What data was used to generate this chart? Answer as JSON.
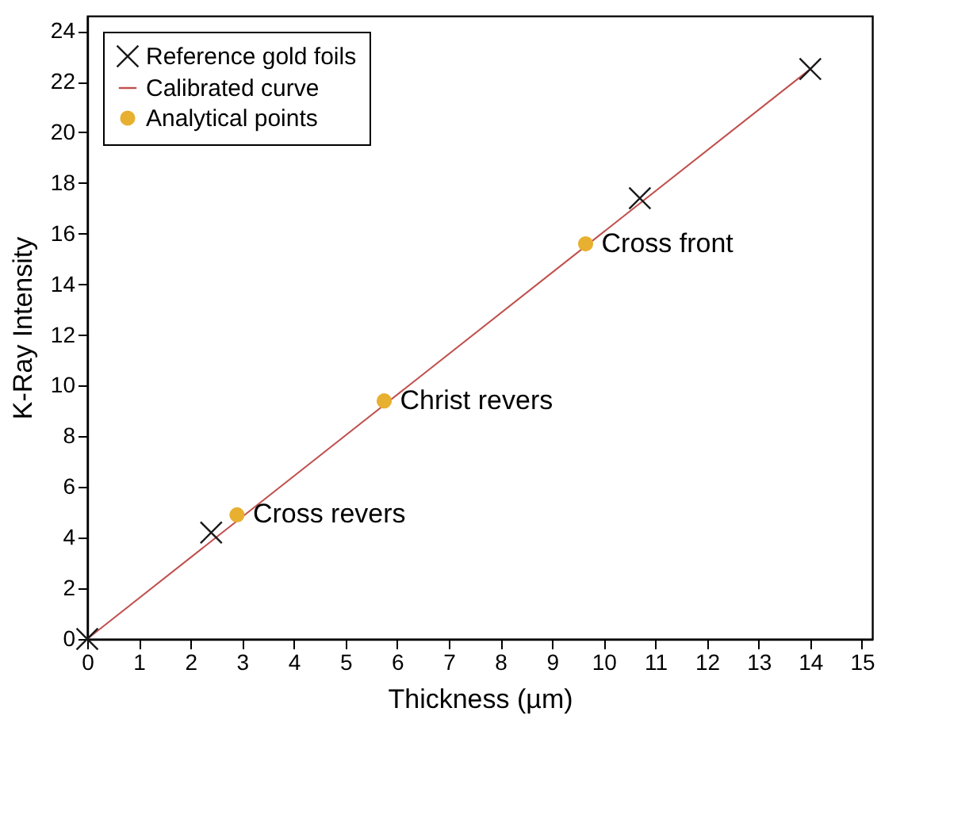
{
  "chart_data": {
    "type": "scatter",
    "xlabel": "Thickness (µm)",
    "ylabel": "K-Ray Intensity",
    "xlim": [
      0,
      15.2
    ],
    "xticks": [
      0,
      1,
      2,
      3,
      4,
      5,
      6,
      7,
      8,
      9,
      10,
      11,
      12,
      13,
      14,
      15
    ],
    "ylim": [
      0,
      24.6
    ],
    "yticks": [
      0,
      2,
      4,
      6,
      8,
      10,
      12,
      14,
      16,
      18,
      20,
      22,
      24
    ],
    "grid": false,
    "legend": "top left",
    "series": [
      {
        "name": "Reference gold foils",
        "marker": "cross",
        "color": "#1a1a1a",
        "x": [
          0,
          2.4,
          10.7,
          14
        ],
        "values": [
          0,
          4.2,
          17.4,
          22.5
        ]
      },
      {
        "name": "Calibrated curve",
        "type": "line",
        "color": "#c0504d",
        "x": [
          0,
          14
        ],
        "values": [
          0,
          22.5
        ]
      },
      {
        "name": "Analytical points",
        "marker": "circle",
        "color": "#e8b030",
        "x": [
          2.9,
          5.75,
          9.65
        ],
        "values": [
          4.9,
          9.4,
          15.6
        ]
      }
    ],
    "annotations": [
      {
        "text": "Cross revers",
        "x": 2.9,
        "y": 4.9
      },
      {
        "text": "Christ revers",
        "x": 5.75,
        "y": 9.4
      },
      {
        "text": "Cross front",
        "x": 9.65,
        "y": 15.6
      }
    ]
  }
}
